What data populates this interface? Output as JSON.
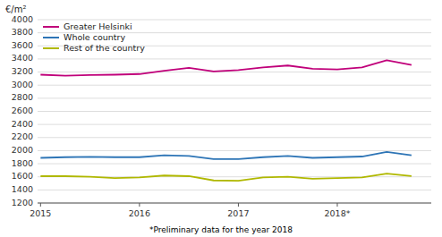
{
  "chart_data": {
    "type": "line",
    "y_label": "€/m²",
    "annotations": [
      "*Preliminary data for the year 2018"
    ],
    "x": [
      2015.0,
      2015.25,
      2015.5,
      2015.75,
      2016.0,
      2016.25,
      2016.5,
      2016.75,
      2017.0,
      2017.25,
      2017.5,
      2017.75,
      2018.0,
      2018.25,
      2018.5,
      2018.75
    ],
    "series": [
      {
        "name": "Greater Helsinki",
        "color": "#c0007a",
        "values": [
          3160,
          3145,
          3155,
          3160,
          3170,
          3220,
          3265,
          3210,
          3230,
          3270,
          3300,
          3250,
          3240,
          3270,
          3380,
          3310
        ]
      },
      {
        "name": "Whole country",
        "color": "#2e75b6",
        "values": [
          1890,
          1900,
          1905,
          1900,
          1900,
          1930,
          1920,
          1870,
          1870,
          1900,
          1920,
          1890,
          1900,
          1910,
          1980,
          1930
        ]
      },
      {
        "name": "Rest of the country",
        "color": "#b0b800",
        "values": [
          1610,
          1610,
          1600,
          1580,
          1590,
          1620,
          1610,
          1545,
          1540,
          1590,
          1600,
          1570,
          1580,
          1590,
          1650,
          1610
        ]
      }
    ],
    "xlim": [
      2014.97,
      2018.95
    ],
    "xticks": [
      2015,
      2016,
      2017,
      {
        "value": 2018,
        "label": "2018*"
      }
    ],
    "ylim": [
      1200,
      4000
    ],
    "yticks": [
      1200,
      1400,
      1600,
      1800,
      2000,
      2200,
      2400,
      2600,
      2800,
      3000,
      3200,
      3400,
      3600,
      3800,
      4000
    ],
    "grid": true,
    "legend": "upper left"
  }
}
